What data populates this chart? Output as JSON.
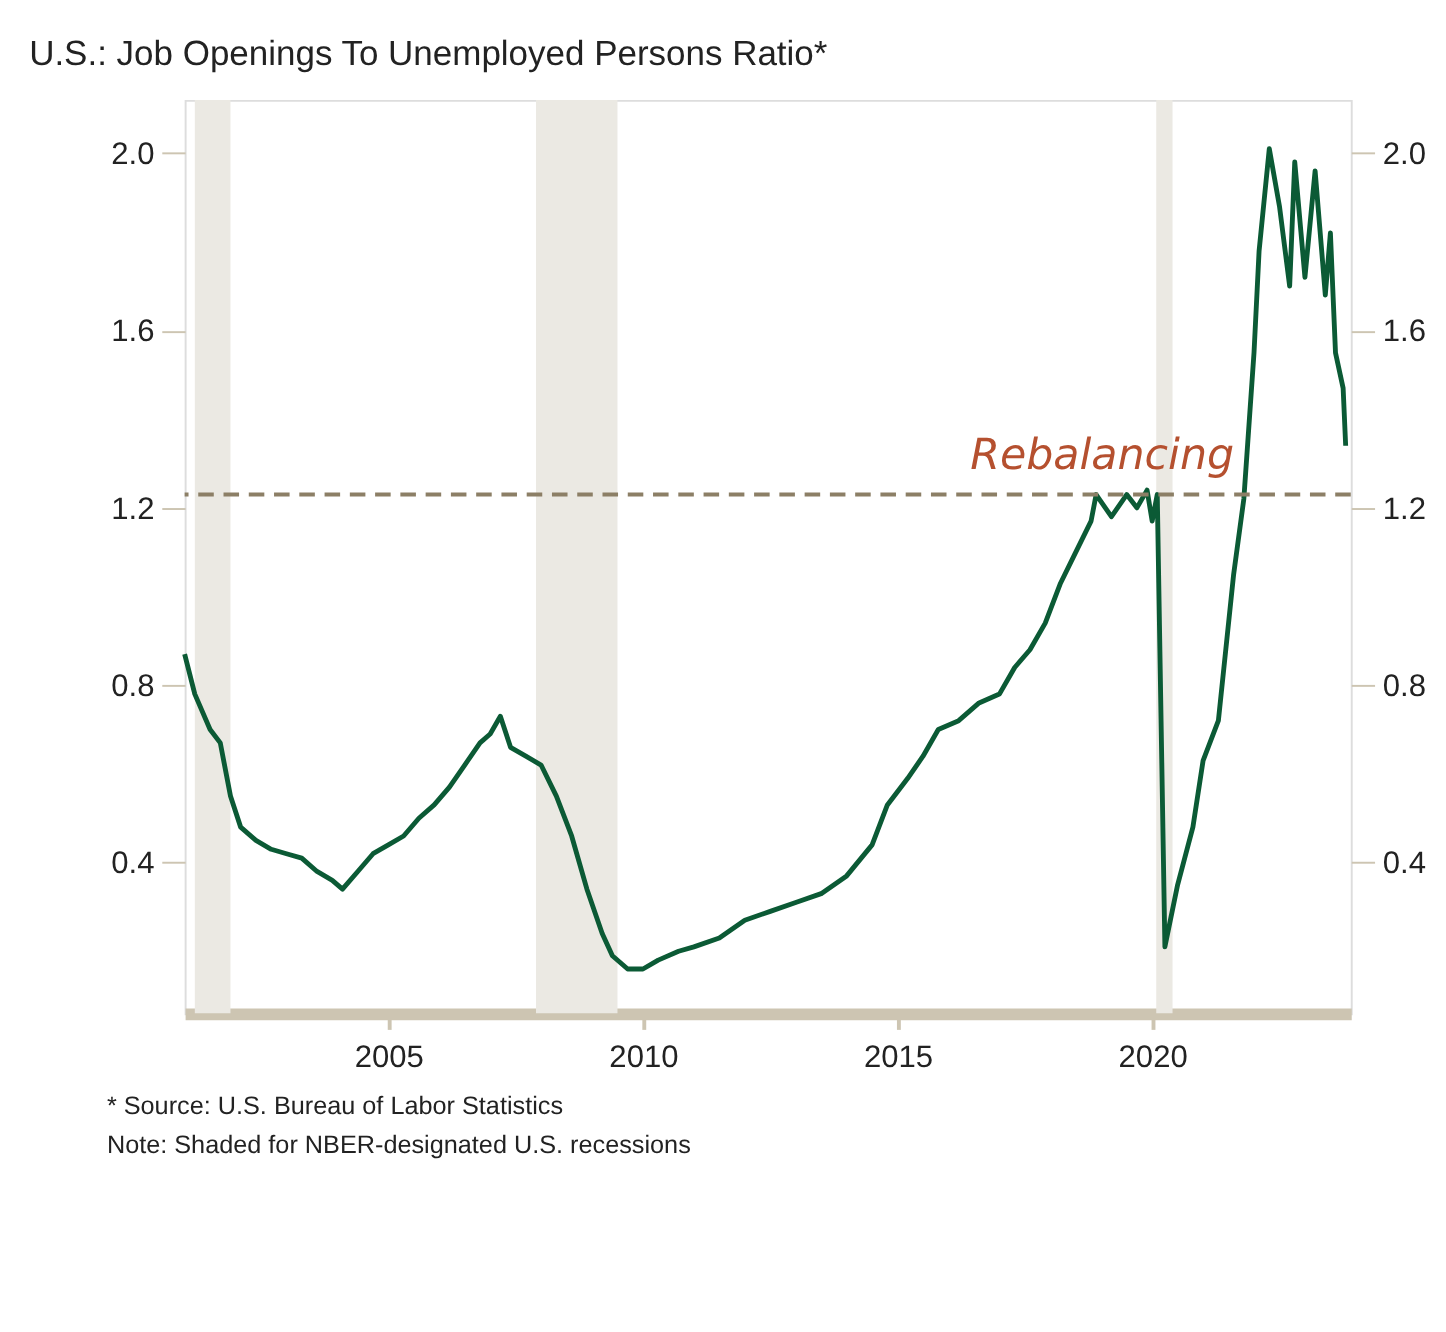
{
  "chart_data": {
    "type": "line",
    "title": "U.S.: Job Openings To Unemployed Persons Ratio*",
    "annotations": [
      "* Source: U.S. Bureau of Labor Statistics",
      "Note: Shaded for NBER-designated U.S. recessions"
    ],
    "series": [
      {
        "color": "#0b5a35",
        "x": [
          2001.0,
          2001.2,
          2001.5,
          2001.7,
          2001.9,
          2002.1,
          2002.4,
          2002.7,
          2003.0,
          2003.3,
          2003.6,
          2003.9,
          2004.1,
          2004.4,
          2004.7,
          2005.0,
          2005.3,
          2005.6,
          2005.9,
          2006.2,
          2006.5,
          2006.8,
          2007.0,
          2007.2,
          2007.4,
          2007.7,
          2008.0,
          2008.3,
          2008.6,
          2008.9,
          2009.2,
          2009.4,
          2009.7,
          2010.0,
          2010.3,
          2010.7,
          2011.0,
          2011.5,
          2012.0,
          2012.5,
          2013.0,
          2013.5,
          2014.0,
          2014.5,
          2014.8,
          2015.2,
          2015.5,
          2015.8,
          2016.2,
          2016.6,
          2017.0,
          2017.3,
          2017.6,
          2017.9,
          2018.2,
          2018.5,
          2018.8,
          2018.9,
          2019.2,
          2019.5,
          2019.7,
          2019.9,
          2020.0,
          2020.1,
          2020.25,
          2020.5,
          2020.8,
          2021.0,
          2021.3,
          2021.6,
          2021.8,
          2022.0,
          2022.1,
          2022.3,
          2022.5,
          2022.7,
          2022.8,
          2023.0,
          2023.2,
          2023.4,
          2023.5,
          2023.6,
          2023.75,
          2023.8
        ],
        "values": [
          0.87,
          0.78,
          0.7,
          0.67,
          0.55,
          0.48,
          0.45,
          0.43,
          0.42,
          0.41,
          0.38,
          0.36,
          0.34,
          0.38,
          0.42,
          0.44,
          0.46,
          0.5,
          0.53,
          0.57,
          0.62,
          0.67,
          0.69,
          0.73,
          0.66,
          0.64,
          0.62,
          0.55,
          0.46,
          0.34,
          0.24,
          0.19,
          0.16,
          0.16,
          0.18,
          0.2,
          0.21,
          0.23,
          0.27,
          0.29,
          0.31,
          0.33,
          0.37,
          0.44,
          0.53,
          0.59,
          0.64,
          0.7,
          0.72,
          0.76,
          0.78,
          0.84,
          0.88,
          0.94,
          1.03,
          1.1,
          1.17,
          1.23,
          1.18,
          1.23,
          1.2,
          1.24,
          1.17,
          1.23,
          0.21,
          0.35,
          0.48,
          0.63,
          0.72,
          1.05,
          1.22,
          1.55,
          1.78,
          2.01,
          1.88,
          1.7,
          1.98,
          1.72,
          1.96,
          1.68,
          1.82,
          1.55,
          1.47,
          1.34
        ]
      }
    ],
    "xlim": [
      2001,
      2023.9
    ],
    "xticks": [
      2005,
      2010,
      2015,
      2020
    ],
    "ylim": [
      0.06,
      2.12
    ],
    "yticks": [
      {
        "value": 0.4,
        "label": "0.4"
      },
      {
        "value": 0.8,
        "label": "0.8"
      },
      {
        "value": 1.2,
        "label": "1.2"
      },
      {
        "value": 1.6,
        "label": "1.6"
      },
      {
        "value": 2.0,
        "label": "2.0"
      }
    ],
    "y2lim": [
      0.06,
      2.12
    ],
    "y2ticks": [
      {
        "value": 0.4,
        "label": "0.4"
      },
      {
        "value": 0.8,
        "label": "0.8"
      },
      {
        "value": 1.2,
        "label": "1.2"
      },
      {
        "value": 1.6,
        "label": "1.6"
      },
      {
        "value": 2.0,
        "label": "2.0"
      }
    ],
    "ref_lines": [
      {
        "axis": "y",
        "value": 1.23,
        "label": "Rebalancing",
        "color": "#8c7f66",
        "line_style": "dashed"
      }
    ],
    "bands": [
      {
        "axis": "x",
        "from": 2001.2,
        "to": 2001.9,
        "color": "#ebe9e3"
      },
      {
        "axis": "x",
        "from": 2007.9,
        "to": 2009.5,
        "color": "#ebe9e3"
      },
      {
        "axis": "x",
        "from": 2020.08,
        "to": 2020.4,
        "color": "#ebe9e3"
      }
    ],
    "grid": false,
    "line_style": "solid",
    "marker": "none"
  }
}
